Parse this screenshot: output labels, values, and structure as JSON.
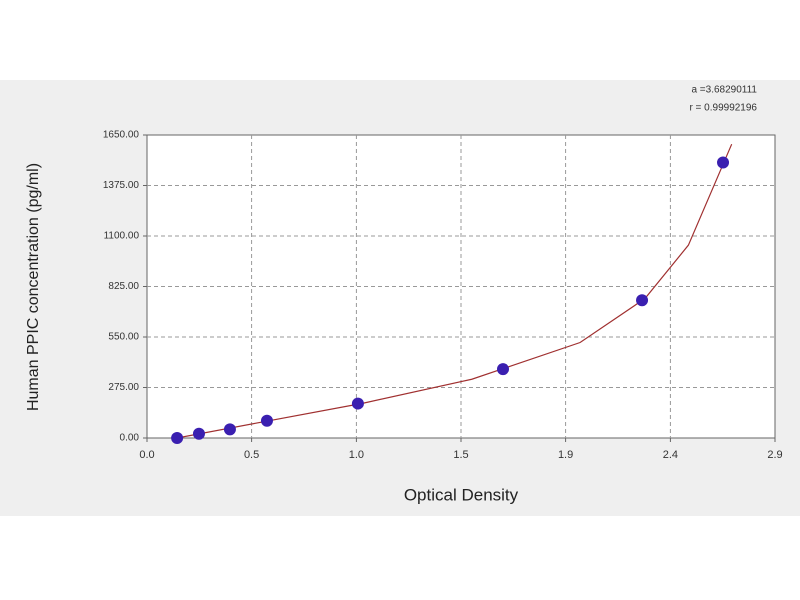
{
  "chart_data": {
    "type": "scatter",
    "xlabel": "Optical Density",
    "ylabel": "Human PPIC  concentration (pg/ml)",
    "annotations": [
      "a =3.68290111",
      "r = 0.99992196"
    ],
    "series": [
      {
        "kind": "points",
        "color": "#3a1fb0",
        "x": [
          0.139,
          0.24,
          0.383,
          0.554,
          0.974,
          1.644,
          2.286,
          2.66
        ],
        "values": [
          0,
          23.4,
          46.9,
          93.75,
          187.5,
          375,
          750,
          1500
        ]
      },
      {
        "kind": "fit",
        "color": "#a03030",
        "x": [
          0.139,
          0.5,
          1.0,
          1.5,
          2.0,
          2.3,
          2.5,
          2.7
        ],
        "values": [
          0,
          80,
          190,
          320,
          520,
          760,
          1050,
          1600
        ]
      }
    ],
    "xlim": [
      0,
      2.9
    ],
    "ylim": [
      0,
      1650
    ],
    "xticks": [
      {
        "value": 0,
        "label": "0.0"
      },
      {
        "value": 0.483,
        "label": "0.5"
      },
      {
        "value": 0.967,
        "label": "1.0"
      },
      {
        "value": 1.45,
        "label": "1.5"
      },
      {
        "value": 1.933,
        "label": "1.9"
      },
      {
        "value": 2.417,
        "label": "2.4"
      },
      {
        "value": 2.9,
        "label": "2.9"
      }
    ],
    "yticks": [
      {
        "value": 0,
        "label": "0.00"
      },
      {
        "value": 275,
        "label": "275.00"
      },
      {
        "value": 550,
        "label": "550.00"
      },
      {
        "value": 825,
        "label": "825.00"
      },
      {
        "value": 1100,
        "label": "1100.00"
      },
      {
        "value": 1375,
        "label": "1375.00"
      },
      {
        "value": 1650,
        "label": "1650.00"
      }
    ],
    "grid": true
  }
}
